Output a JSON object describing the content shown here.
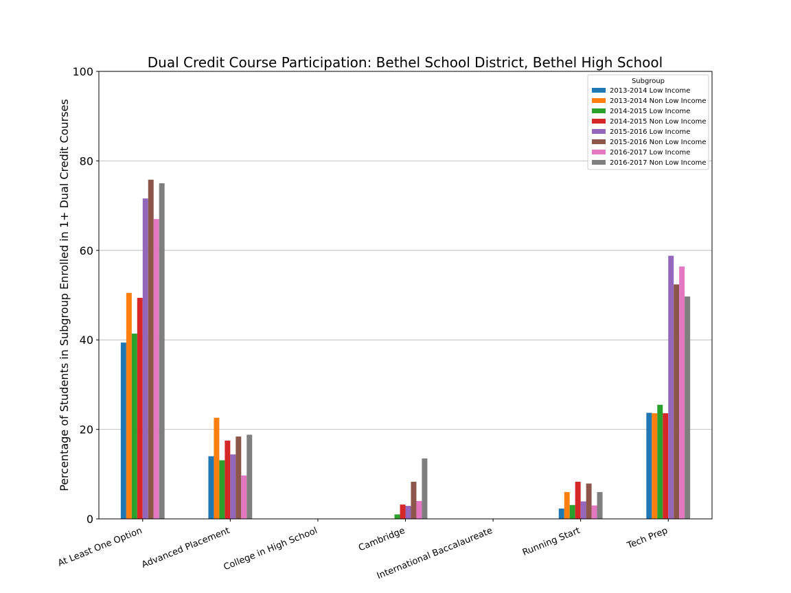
{
  "chart_data": {
    "type": "bar",
    "title": "Dual Credit Course Participation: Bethel School District, Bethel High School",
    "xlabel": "",
    "ylabel": "Percentage of Students in Subgroup Enrolled in 1+ Dual Credit Courses",
    "ylim": [
      0,
      100
    ],
    "yticks": [
      "0",
      "20",
      "40",
      "60",
      "80",
      "100"
    ],
    "grid": "horizontal",
    "legend_title": "Subgroup",
    "legend_position": "top-right",
    "categories": [
      "At Least One Option",
      "Advanced Placement",
      "College in High School",
      "Cambridge",
      "International Baccalaureate",
      "Running Start",
      "Tech Prep"
    ],
    "series": [
      {
        "name": "2013-2014 Low Income",
        "color": "#1f77b4",
        "values": [
          39.4,
          14.0,
          0,
          0,
          0,
          2.3,
          23.7
        ]
      },
      {
        "name": "2013-2014 Non Low Income",
        "color": "#ff7f0e",
        "values": [
          50.5,
          22.6,
          0,
          0,
          0,
          6.0,
          23.6
        ]
      },
      {
        "name": "2014-2015 Low Income",
        "color": "#2ca02c",
        "values": [
          41.4,
          13.1,
          0,
          1.0,
          0,
          3.1,
          25.5
        ]
      },
      {
        "name": "2014-2015 Non Low Income",
        "color": "#d62728",
        "values": [
          49.4,
          17.5,
          0,
          3.2,
          0,
          8.3,
          23.6
        ]
      },
      {
        "name": "2015-2016 Low Income",
        "color": "#9467bd",
        "values": [
          71.6,
          14.4,
          0,
          2.9,
          0,
          3.9,
          58.8
        ]
      },
      {
        "name": "2015-2016 Non Low Income",
        "color": "#8c564b",
        "values": [
          75.8,
          18.4,
          0,
          8.3,
          0,
          7.9,
          52.4
        ]
      },
      {
        "name": "2016-2017 Low Income",
        "color": "#e377c2",
        "values": [
          67.0,
          9.7,
          0,
          4.0,
          0,
          3.0,
          56.4
        ]
      },
      {
        "name": "2016-2017 Non Low Income",
        "color": "#7f7f7f",
        "values": [
          75.0,
          18.8,
          0,
          13.5,
          0,
          6.0,
          49.7
        ]
      }
    ]
  }
}
